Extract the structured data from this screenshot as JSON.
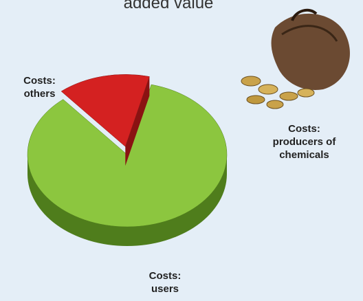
{
  "chart_data": {
    "type": "pie",
    "title": "added value",
    "categories": [
      "Costs: others",
      "Costs: users"
    ],
    "values": [
      15,
      85
    ],
    "colors": [
      "#d42121",
      "#8cc63f"
    ],
    "side_colors": [
      "#8a1212",
      "#4f7d1c"
    ],
    "annotation": "Costs: producers of chemicals"
  }
}
